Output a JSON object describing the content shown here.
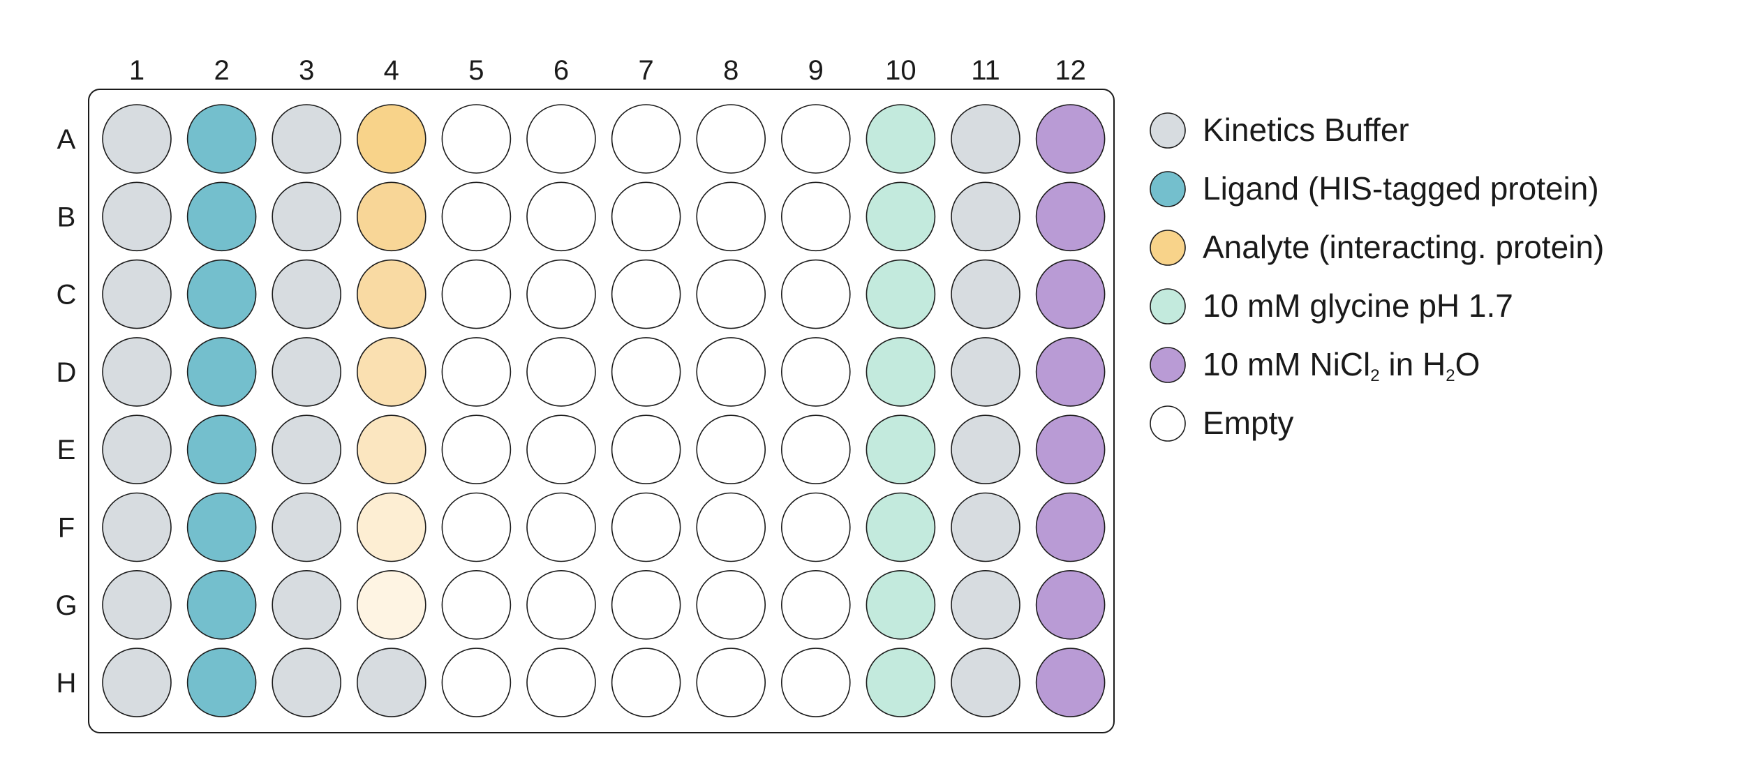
{
  "plate": {
    "column_labels": [
      "1",
      "2",
      "3",
      "4",
      "5",
      "6",
      "7",
      "8",
      "9",
      "10",
      "11",
      "12"
    ],
    "row_labels": [
      "A",
      "B",
      "C",
      "D",
      "E",
      "F",
      "G",
      "H"
    ],
    "wells": [
      [
        "buffer",
        "ligand",
        "buffer",
        "analyte-1",
        "empty",
        "empty",
        "empty",
        "empty",
        "empty",
        "glycine",
        "buffer",
        "nicl2"
      ],
      [
        "buffer",
        "ligand",
        "buffer",
        "analyte-2",
        "empty",
        "empty",
        "empty",
        "empty",
        "empty",
        "glycine",
        "buffer",
        "nicl2"
      ],
      [
        "buffer",
        "ligand",
        "buffer",
        "analyte-3",
        "empty",
        "empty",
        "empty",
        "empty",
        "empty",
        "glycine",
        "buffer",
        "nicl2"
      ],
      [
        "buffer",
        "ligand",
        "buffer",
        "analyte-4",
        "empty",
        "empty",
        "empty",
        "empty",
        "empty",
        "glycine",
        "buffer",
        "nicl2"
      ],
      [
        "buffer",
        "ligand",
        "buffer",
        "analyte-5",
        "empty",
        "empty",
        "empty",
        "empty",
        "empty",
        "glycine",
        "buffer",
        "nicl2"
      ],
      [
        "buffer",
        "ligand",
        "buffer",
        "analyte-6",
        "empty",
        "empty",
        "empty",
        "empty",
        "empty",
        "glycine",
        "buffer",
        "nicl2"
      ],
      [
        "buffer",
        "ligand",
        "buffer",
        "analyte-7",
        "empty",
        "empty",
        "empty",
        "empty",
        "empty",
        "glycine",
        "buffer",
        "nicl2"
      ],
      [
        "buffer",
        "ligand",
        "buffer",
        "buffer",
        "empty",
        "empty",
        "empty",
        "empty",
        "empty",
        "glycine",
        "buffer",
        "nicl2"
      ]
    ]
  },
  "colors": {
    "buffer": "#d7dce0",
    "ligand": "#74bfcd",
    "analyte-1": "#f8d38a",
    "analyte-2": "#f8d697",
    "analyte-3": "#f9daa3",
    "analyte-4": "#fae0b1",
    "analyte-5": "#fbe6c0",
    "analyte-6": "#fdeed3",
    "analyte-7": "#fef4e3",
    "glycine": "#c3eadd",
    "nicl2": "#b99bd5",
    "empty": "#ffffff",
    "outline": "#1a1a1a"
  },
  "legend": [
    {
      "key": "buffer",
      "label": "Kinetics Buffer"
    },
    {
      "key": "ligand",
      "label": "Ligand (HIS-tagged protein)"
    },
    {
      "key": "analyte-1",
      "label": "Analyte (interacting. protein)"
    },
    {
      "key": "glycine",
      "label": "10 mM glycine pH 1.7"
    },
    {
      "key": "nicl2",
      "label": "10 mM NiCl",
      "sub1": "2",
      "mid": " in H",
      "sub2": "2",
      "tail": "O"
    },
    {
      "key": "empty",
      "label": "Empty"
    }
  ]
}
